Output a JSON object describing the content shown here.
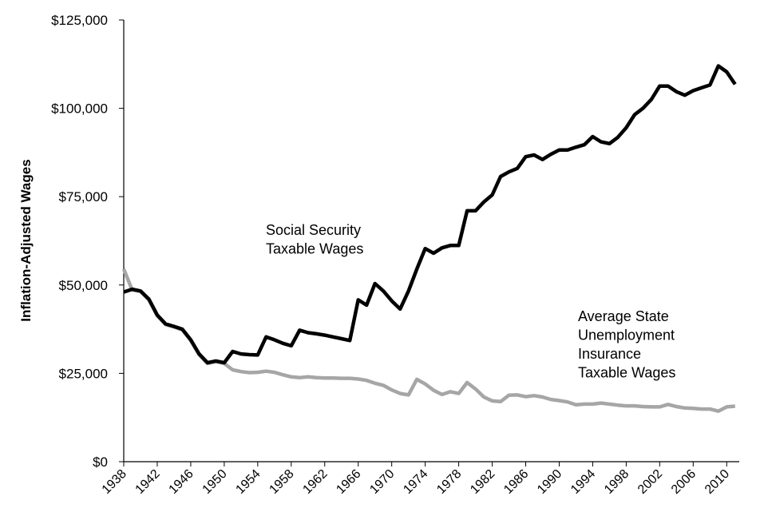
{
  "chart_data": {
    "type": "line",
    "y_label": "Inflation-Adjusted Wages",
    "x": [
      1938,
      1939,
      1940,
      1941,
      1942,
      1943,
      1944,
      1945,
      1946,
      1947,
      1948,
      1949,
      1950,
      1951,
      1952,
      1953,
      1954,
      1955,
      1956,
      1957,
      1958,
      1959,
      1960,
      1961,
      1962,
      1963,
      1964,
      1965,
      1966,
      1967,
      1968,
      1969,
      1970,
      1971,
      1972,
      1973,
      1974,
      1975,
      1976,
      1977,
      1978,
      1979,
      1980,
      1981,
      1982,
      1983,
      1984,
      1985,
      1986,
      1987,
      1988,
      1989,
      1990,
      1991,
      1992,
      1993,
      1994,
      1995,
      1996,
      1997,
      1998,
      1999,
      2000,
      2001,
      2002,
      2003,
      2004,
      2005,
      2006,
      2007,
      2008,
      2009,
      2010,
      2011
    ],
    "series": [
      {
        "color": "#000000",
        "values": [
          48000,
          48800,
          48300,
          46000,
          41500,
          39000,
          38300,
          37500,
          34500,
          30500,
          28000,
          28500,
          28000,
          31200,
          30500,
          30300,
          30200,
          35300,
          34500,
          33500,
          32800,
          37200,
          36500,
          36200,
          35800,
          35300,
          34800,
          34300,
          45800,
          44300,
          50400,
          48300,
          45500,
          43200,
          48300,
          54500,
          60300,
          59000,
          60500,
          61200,
          61200,
          71000,
          71000,
          73500,
          75500,
          80700,
          82000,
          83000,
          86300,
          86800,
          85500,
          87000,
          88200,
          88200,
          89000,
          89700,
          92000,
          90500,
          90000,
          91800,
          94500,
          98200,
          100000,
          102500,
          106300,
          106300,
          104700,
          103700,
          105000,
          105800,
          106600,
          112000,
          110300,
          106800
        ]
      },
      {
        "color": "#a6a6a6",
        "values": [
          54500,
          48600,
          48200,
          45800,
          41300,
          38800,
          38100,
          37300,
          34300,
          30300,
          27800,
          28300,
          27800,
          26000,
          25500,
          25200,
          25300,
          25600,
          25300,
          24600,
          24000,
          23800,
          24000,
          23800,
          23700,
          23700,
          23600,
          23600,
          23400,
          23000,
          22200,
          21600,
          20300,
          19300,
          18900,
          23300,
          22000,
          20200,
          19000,
          19800,
          19300,
          22400,
          20600,
          18300,
          17200,
          17000,
          18800,
          18900,
          18400,
          18700,
          18300,
          17600,
          17300,
          16900,
          16100,
          16300,
          16300,
          16600,
          16300,
          16000,
          15800,
          15800,
          15600,
          15500,
          15500,
          16200,
          15600,
          15200,
          15100,
          14900,
          14900,
          14300,
          15500,
          15700
        ]
      }
    ],
    "annotations": [
      {
        "lines": [
          "Social Security",
          "Taxable Wages"
        ]
      },
      {
        "lines": [
          "Average State",
          "Unemployment",
          "Insurance",
          "Taxable Wages"
        ]
      }
    ],
    "xlim": [
      1938,
      2011.5
    ],
    "xticks": [
      1938,
      1942,
      1946,
      1950,
      1954,
      1958,
      1962,
      1966,
      1970,
      1974,
      1978,
      1982,
      1986,
      1990,
      1994,
      1998,
      2002,
      2006,
      2010
    ],
    "ylim": [
      0,
      125000
    ],
    "yticks": [
      {
        "value": 0,
        "label": "$0"
      },
      {
        "value": 25000,
        "label": "$25,000"
      },
      {
        "value": 50000,
        "label": "$50,000"
      },
      {
        "value": 75000,
        "label": "$75,000"
      },
      {
        "value": 100000,
        "label": "$100,000"
      },
      {
        "value": 125000,
        "label": "$125,000"
      }
    ],
    "grid": false
  }
}
